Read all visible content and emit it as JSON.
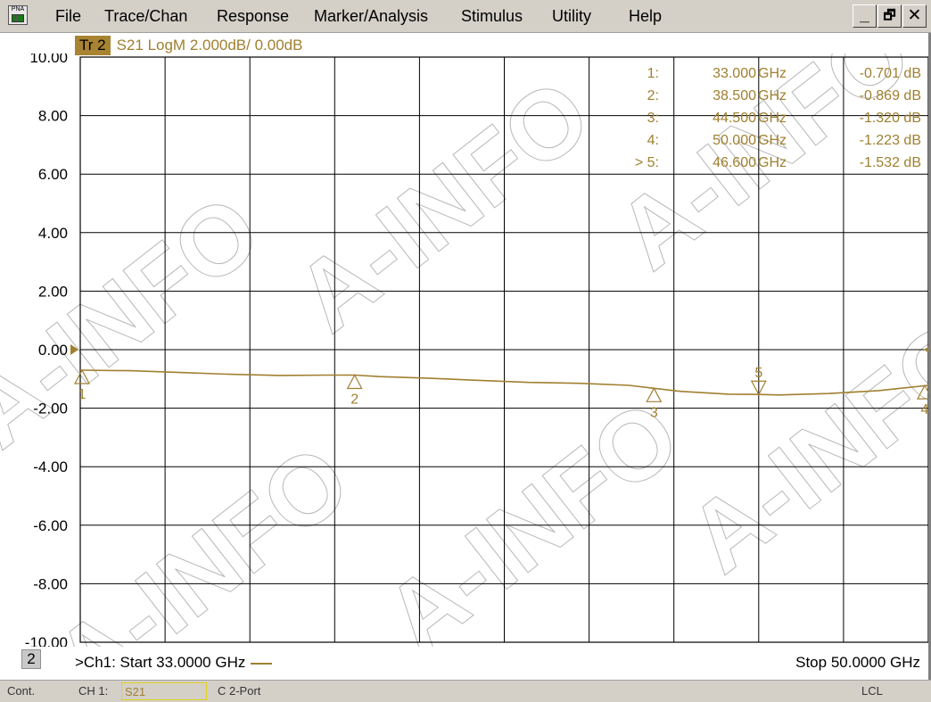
{
  "menu": {
    "app_icon_label": "PNA",
    "items": [
      "File",
      "Trace/Chan",
      "Response",
      "Marker/Analysis",
      "Stimulus",
      "Utility",
      "Help"
    ],
    "window_buttons": {
      "minimize": "_",
      "restore": "🗗",
      "close": "✕"
    }
  },
  "trace_header": {
    "badge": "Tr 2",
    "description": "S21 LogM 2.000dB/  0.00dB"
  },
  "colors": {
    "trace": "#a08030",
    "grid": "#000000",
    "watermark": "#b8b8b8"
  },
  "markers": [
    {
      "number": "1:",
      "freq": "33.000",
      "unit": "GHz",
      "value": "-0.701 dB"
    },
    {
      "number": "2:",
      "freq": "38.500",
      "unit": "GHz",
      "value": "-0.869 dB"
    },
    {
      "number": "3:",
      "freq": "44.500",
      "unit": "GHz",
      "value": "-1.320 dB"
    },
    {
      "number": "4:",
      "freq": "50.000",
      "unit": "GHz",
      "value": "-1.223 dB"
    },
    {
      "number": "> 5:",
      "freq": "46.600",
      "unit": "GHz",
      "value": "-1.532 dB"
    }
  ],
  "chart_data": {
    "type": "line",
    "xlim": [
      33.0,
      50.0
    ],
    "ylim": [
      -10,
      10
    ],
    "yticks": [
      10,
      8,
      6,
      4,
      2,
      0,
      -2,
      -4,
      -6,
      -8,
      -10
    ],
    "ytick_labels": [
      "10.00",
      "8.00",
      "6.00",
      "4.00",
      "2.00",
      "0.00",
      "-2.00",
      "-4.00",
      "-6.00",
      "-8.00",
      "-10.00"
    ],
    "x_divisions": 10,
    "grid": true,
    "reference_level": 0.0,
    "series": [
      {
        "x": [
          33.0,
          34.0,
          35.0,
          36.0,
          37.0,
          38.0,
          38.5,
          39.0,
          40.0,
          41.0,
          42.0,
          43.0,
          44.0,
          44.5,
          45.0,
          46.0,
          46.6,
          47.0,
          48.0,
          49.0,
          50.0
        ],
        "y": [
          -0.7,
          -0.72,
          -0.78,
          -0.84,
          -0.88,
          -0.87,
          -0.87,
          -0.92,
          -0.98,
          -1.05,
          -1.12,
          -1.15,
          -1.22,
          -1.32,
          -1.42,
          -1.52,
          -1.53,
          -1.55,
          -1.5,
          -1.4,
          -1.22
        ]
      }
    ],
    "marker_points": [
      {
        "label": "1",
        "x": 33.0,
        "y": -0.701
      },
      {
        "label": "2",
        "x": 38.5,
        "y": -0.869
      },
      {
        "label": "3",
        "x": 44.5,
        "y": -1.32
      },
      {
        "label": "4",
        "x": 50.0,
        "y": -1.223
      },
      {
        "label": "5",
        "x": 46.6,
        "y": -1.532,
        "active": true
      }
    ],
    "start_label": ">Ch1: Start  33.0000 GHz",
    "stop_label": "Stop  50.0000 GHz",
    "watermark": "A-INFO"
  },
  "footer": {
    "channel_number": "2"
  },
  "status": {
    "mode": "Cont.",
    "channel": "CH 1:",
    "parameter": "S21",
    "cal": "C  2-Port",
    "remote": "LCL"
  }
}
